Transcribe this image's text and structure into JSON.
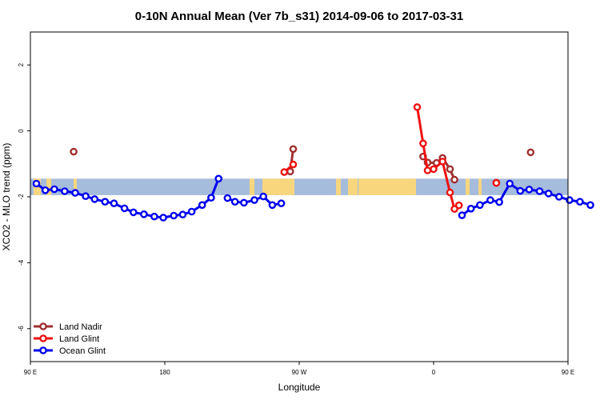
{
  "chart_data": {
    "type": "line",
    "title": "0-10N Annual Mean (Ver 7b_s31)   2014-09-06 to 2017-03-31",
    "xlabel": "Longitude",
    "ylabel": "XCO2 - MLO trend (ppm)",
    "xlim": [
      90,
      450
    ],
    "ylim": [
      -7,
      3
    ],
    "x_ticks": [
      {
        "value": 90,
        "label": "90 E"
      },
      {
        "value": 180,
        "label": "180"
      },
      {
        "value": 270,
        "label": "90 W"
      },
      {
        "value": 360,
        "label": "0"
      },
      {
        "value": 450,
        "label": "90 E"
      },
      {
        "value": 540,
        "label": "180"
      }
    ],
    "y_ticks": [
      {
        "value": 2,
        "label": "2"
      },
      {
        "value": 0,
        "label": "0"
      },
      {
        "value": -2,
        "label": "-2"
      },
      {
        "value": -4,
        "label": "-4"
      },
      {
        "value": -6,
        "label": "-6"
      }
    ],
    "band": {
      "ymin": -1.95,
      "ymax": -1.45
    },
    "legend_position": "bottom-left",
    "series": [
      {
        "name": "Land Nadir",
        "color": "#a03030",
        "segments": [
          [
            [
              119,
              -0.63
            ]
          ],
          [
            [
              264,
              -1.23
            ],
            [
              266,
              -0.55
            ]
          ],
          [
            [
              353,
              -0.78
            ],
            [
              356,
              -0.96
            ],
            [
              362,
              -0.97
            ],
            [
              366,
              -0.82
            ],
            [
              371,
              -1.16
            ],
            [
              374,
              -1.48
            ]
          ],
          [
            [
              402,
              -1.57
            ]
          ],
          [
            [
              425,
              -0.65
            ]
          ]
        ]
      },
      {
        "name": "Land Glint",
        "color": "#ee1111",
        "segments": [
          [
            [
              260,
              -1.25
            ],
            [
              266,
              -1.02
            ]
          ],
          [
            [
              349,
              0.72
            ],
            [
              353,
              -0.38
            ],
            [
              356,
              -1.2
            ],
            [
              360,
              -1.16
            ],
            [
              366,
              -0.93
            ],
            [
              371,
              -1.87
            ],
            [
              374,
              -2.37
            ],
            [
              377,
              -2.26
            ]
          ],
          [
            [
              402,
              -1.58
            ]
          ]
        ]
      },
      {
        "name": "Ocean Glint",
        "color": "#0000ee",
        "segments": [
          [
            [
              94,
              -1.6
            ],
            [
              100,
              -1.8
            ],
            [
              106,
              -1.77
            ],
            [
              113,
              -1.83
            ],
            [
              120,
              -1.88
            ],
            [
              127,
              -1.98
            ],
            [
              133,
              -2.07
            ],
            [
              140,
              -2.15
            ],
            [
              146,
              -2.2
            ],
            [
              153,
              -2.35
            ],
            [
              159,
              -2.47
            ],
            [
              166,
              -2.53
            ],
            [
              173,
              -2.6
            ],
            [
              179,
              -2.63
            ],
            [
              186,
              -2.57
            ],
            [
              192,
              -2.54
            ],
            [
              198,
              -2.45
            ],
            [
              205,
              -2.25
            ],
            [
              211,
              -2.03
            ],
            [
              216,
              -1.45
            ]
          ],
          [
            [
              222,
              -2.04
            ],
            [
              227,
              -2.15
            ],
            [
              233,
              -2.18
            ],
            [
              240,
              -2.1
            ],
            [
              246,
              -1.99
            ],
            [
              252,
              -2.25
            ],
            [
              258,
              -2.2
            ]
          ],
          [
            [
              379,
              -2.56
            ],
            [
              385,
              -2.36
            ],
            [
              391,
              -2.25
            ],
            [
              398,
              -2.1
            ],
            [
              404,
              -2.16
            ],
            [
              411,
              -1.6
            ],
            [
              418,
              -1.82
            ],
            [
              424,
              -1.78
            ],
            [
              431,
              -1.83
            ],
            [
              437,
              -1.9
            ],
            [
              444,
              -2.0
            ],
            [
              451,
              -2.1
            ],
            [
              458,
              -2.15
            ],
            [
              465,
              -2.25
            ]
          ]
        ]
      }
    ]
  }
}
